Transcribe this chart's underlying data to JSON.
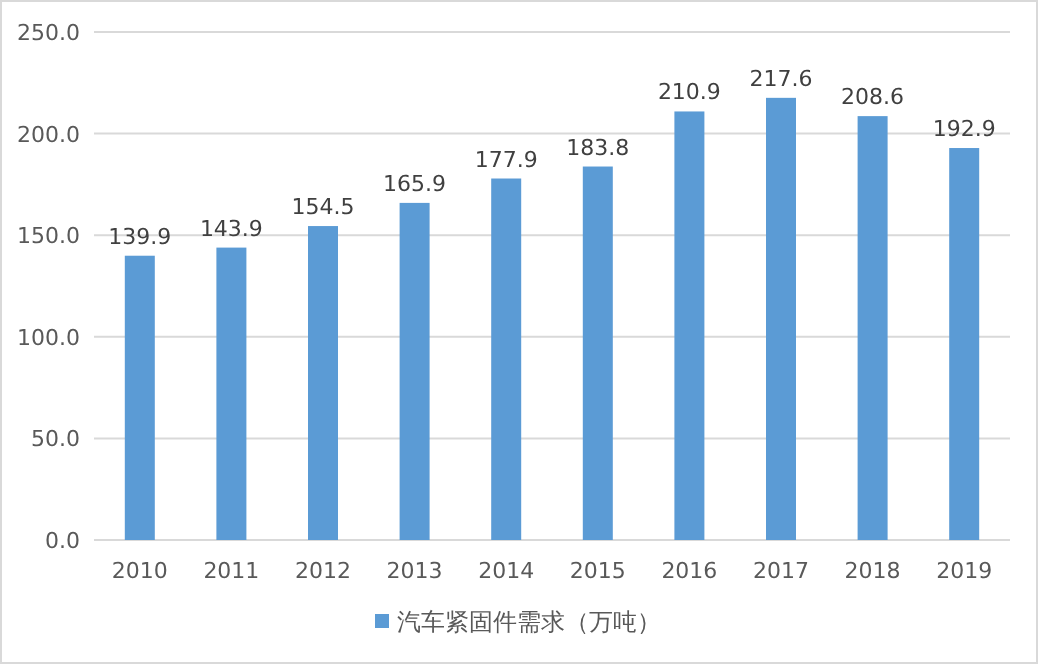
{
  "chart_data": {
    "type": "bar",
    "categories": [
      "2010",
      "2011",
      "2012",
      "2013",
      "2014",
      "2015",
      "2016",
      "2017",
      "2018",
      "2019"
    ],
    "series": [
      {
        "name": "汽车紧固件需求（万吨）",
        "color": "#5b9bd5",
        "values": [
          139.9,
          143.9,
          154.5,
          165.9,
          177.9,
          183.8,
          210.9,
          217.6,
          208.6,
          192.9
        ]
      }
    ],
    "ylim": [
      0,
      250
    ],
    "yticks": [
      {
        "value": 0,
        "label": "0.0"
      },
      {
        "value": 50,
        "label": "50.0"
      },
      {
        "value": 100,
        "label": "100.0"
      },
      {
        "value": 150,
        "label": "150.0"
      },
      {
        "value": 200,
        "label": "200.0"
      },
      {
        "value": 250,
        "label": "250.0"
      }
    ],
    "grid": "y",
    "legend": "bottom",
    "data_labels": true
  }
}
